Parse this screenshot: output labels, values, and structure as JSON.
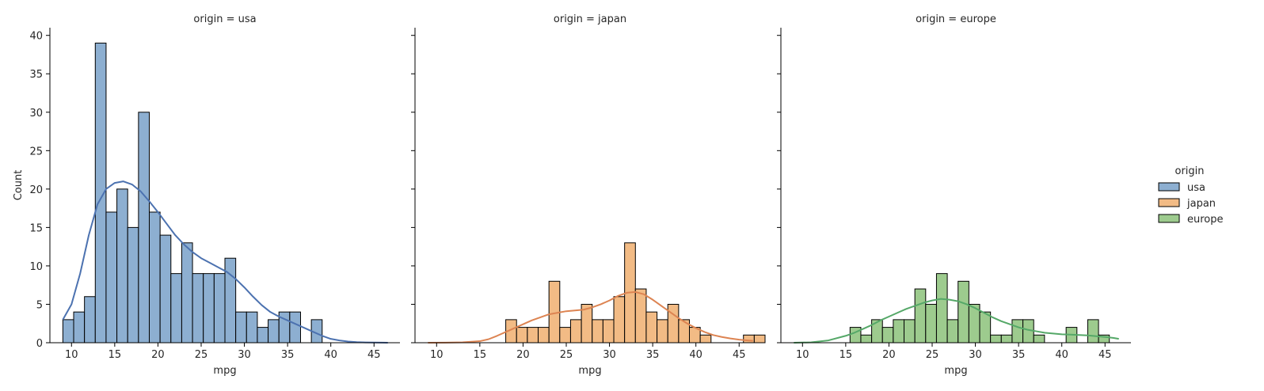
{
  "chart_data": [
    {
      "type": "bar",
      "title": "origin = usa",
      "xlabel": "mpg",
      "ylabel": "Count",
      "xlim": [
        7.5,
        48.0
      ],
      "ylim": [
        0,
        41
      ],
      "xticks": [
        10,
        15,
        20,
        25,
        30,
        35,
        40,
        45
      ],
      "yticks": [
        0,
        5,
        10,
        15,
        20,
        25,
        30,
        35,
        40
      ],
      "bin_start": 9.0,
      "bin_width": 1.25,
      "color": "#4c72b0",
      "fill": "#8dafd1",
      "series": [
        {
          "name": "usa",
          "values": [
            3,
            4,
            6,
            39,
            17,
            20,
            15,
            30,
            17,
            14,
            9,
            13,
            9,
            9,
            9,
            11,
            4,
            4,
            2,
            3,
            4,
            4,
            0,
            3
          ]
        }
      ],
      "kde": {
        "x": [
          9,
          10,
          11,
          12,
          13,
          14,
          15,
          16,
          17,
          18,
          19,
          20,
          21,
          22,
          23,
          24,
          25,
          26,
          27,
          28,
          29,
          30,
          31,
          32,
          33,
          34,
          35,
          36,
          37,
          38,
          39,
          40,
          41,
          42,
          43,
          44,
          45,
          46,
          46.6
        ],
        "y": [
          3,
          5,
          9,
          14,
          18,
          20,
          20.8,
          21,
          20.6,
          19.7,
          18.4,
          17,
          15.5,
          14,
          12.8,
          11.8,
          11,
          10.4,
          9.8,
          9.2,
          8.3,
          7.2,
          6,
          4.9,
          4,
          3.4,
          2.9,
          2.4,
          1.9,
          1.4,
          0.9,
          0.5,
          0.3,
          0.15,
          0.08,
          0.04,
          0.02,
          0.01,
          0
        ]
      }
    },
    {
      "type": "bar",
      "title": "origin = japan",
      "xlabel": "mpg",
      "ylabel": "",
      "xlim": [
        7.5,
        48.0
      ],
      "ylim": [
        0,
        41
      ],
      "xticks": [
        10,
        15,
        20,
        25,
        30,
        35,
        40,
        45
      ],
      "bin_start": 18.0,
      "bin_width": 1.25,
      "color": "#dd8452",
      "fill": "#f2bb85",
      "series": [
        {
          "name": "japan",
          "values": [
            3,
            2,
            2,
            2,
            8,
            2,
            3,
            5,
            3,
            3,
            6,
            13,
            7,
            4,
            3,
            5,
            3,
            2,
            1,
            0,
            0,
            0,
            1,
            1
          ]
        }
      ],
      "kde": {
        "x": [
          9,
          11,
          13,
          15,
          16,
          17,
          18,
          19,
          20,
          21,
          22,
          23,
          24,
          25,
          26,
          27,
          28,
          29,
          30,
          31,
          32,
          33,
          34,
          35,
          36,
          37,
          38,
          39,
          40,
          41,
          42,
          43,
          44,
          45,
          46,
          46.6
        ],
        "y": [
          0,
          0.01,
          0.05,
          0.2,
          0.45,
          0.9,
          1.4,
          1.9,
          2.4,
          2.9,
          3.3,
          3.7,
          3.9,
          4.1,
          4.2,
          4.3,
          4.6,
          5.0,
          5.5,
          6.1,
          6.5,
          6.6,
          6.3,
          5.6,
          4.8,
          4.0,
          3.2,
          2.5,
          1.9,
          1.4,
          1.0,
          0.75,
          0.55,
          0.4,
          0.3,
          0.25
        ]
      }
    },
    {
      "type": "bar",
      "title": "origin = europe",
      "xlabel": "mpg",
      "ylabel": "",
      "xlim": [
        7.5,
        48.0
      ],
      "ylim": [
        0,
        41
      ],
      "xticks": [
        10,
        15,
        20,
        25,
        30,
        35,
        40,
        45
      ],
      "bin_start": 15.5,
      "bin_width": 1.25,
      "color": "#55a868",
      "fill": "#9dcb8e",
      "series": [
        {
          "name": "europe",
          "values": [
            2,
            1,
            3,
            2,
            3,
            3,
            7,
            5,
            9,
            3,
            8,
            5,
            4,
            1,
            1,
            3,
            3,
            1,
            0,
            0,
            2,
            0,
            3,
            1
          ]
        }
      ],
      "kde": {
        "x": [
          9,
          11,
          13,
          15,
          16,
          17,
          18,
          19,
          20,
          21,
          22,
          23,
          24,
          25,
          26,
          27,
          28,
          29,
          30,
          31,
          32,
          33,
          34,
          35,
          36,
          37,
          38,
          39,
          40,
          41,
          42,
          43,
          44,
          45,
          46,
          46.6
        ],
        "y": [
          0,
          0.05,
          0.3,
          0.9,
          1.3,
          1.8,
          2.3,
          2.9,
          3.4,
          3.9,
          4.4,
          4.8,
          5.2,
          5.5,
          5.7,
          5.6,
          5.4,
          5.0,
          4.5,
          3.9,
          3.3,
          2.8,
          2.4,
          2.0,
          1.7,
          1.5,
          1.3,
          1.2,
          1.1,
          1.05,
          1.0,
          0.95,
          0.85,
          0.75,
          0.62,
          0.5
        ]
      }
    }
  ],
  "legend": {
    "title": "origin",
    "placement": "right",
    "items": [
      {
        "label": "usa",
        "fill": "#8dafd1",
        "edge": "#000000"
      },
      {
        "label": "japan",
        "fill": "#f2bb85",
        "edge": "#000000"
      },
      {
        "label": "europe",
        "fill": "#9dcb8e",
        "edge": "#000000"
      }
    ]
  }
}
